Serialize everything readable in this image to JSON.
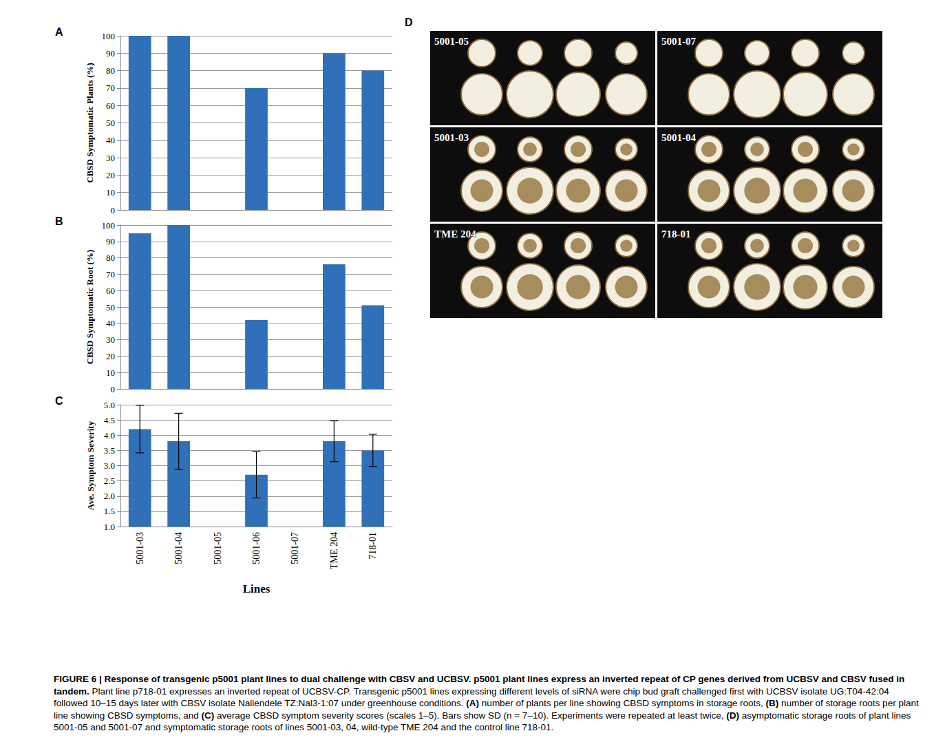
{
  "chart_data": [
    {
      "type": "bar",
      "panel": "A",
      "categories": [
        "5001-03",
        "5001-04",
        "5001-05",
        "5001-06",
        "5001-07",
        "TME 204",
        "718-01"
      ],
      "values": [
        100,
        100,
        0,
        70,
        0,
        90,
        80
      ],
      "color": "#3070b8",
      "y_label": "CBSD Symptomatic Plants (%)",
      "ylim": [
        0,
        100
      ],
      "yticks": [
        0,
        10,
        20,
        30,
        40,
        50,
        60,
        70,
        80,
        90,
        100
      ],
      "grid": true,
      "tick_labels": "y"
    },
    {
      "type": "bar",
      "panel": "B",
      "categories": [
        "5001-03",
        "5001-04",
        "5001-05",
        "5001-06",
        "5001-07",
        "TME 204",
        "718-01"
      ],
      "values": [
        95,
        100,
        0,
        42,
        0,
        76,
        51
      ],
      "color": "#3070b8",
      "y_label": "CBSD Symptomatic Root (%)",
      "ylim": [
        0,
        100
      ],
      "yticks": [
        0,
        10,
        20,
        30,
        40,
        50,
        60,
        70,
        80,
        90,
        100
      ],
      "grid": true,
      "tick_labels": "y"
    },
    {
      "type": "bar",
      "panel": "C",
      "categories": [
        "5001-03",
        "5001-04",
        "5001-05",
        "5001-06",
        "5001-07",
        "TME 204",
        "718-01"
      ],
      "values": [
        4.2,
        3.8,
        null,
        2.7,
        null,
        3.8,
        3.5
      ],
      "errors": [
        0.78,
        0.92,
        null,
        0.76,
        null,
        0.67,
        0.53
      ],
      "color": "#3070b8",
      "y_label": "Ave. Symptom Severity",
      "x_label": "Lines",
      "ylim": [
        1,
        5
      ],
      "yticks": [
        {
          "value": 1,
          "label": "1.0"
        },
        {
          "value": 1.5,
          "label": "1.5"
        },
        {
          "value": 2,
          "label": "2.0"
        },
        {
          "value": 2.5,
          "label": "2.5"
        },
        {
          "value": 3,
          "label": "3.0"
        },
        {
          "value": 3.5,
          "label": "3.5"
        },
        {
          "value": 4,
          "label": "4.0"
        },
        {
          "value": 4.5,
          "label": "4.5"
        },
        {
          "value": 5,
          "label": "5.0"
        }
      ],
      "grid": true
    }
  ],
  "panel_d": {
    "letter": "D",
    "photos": [
      "5001-05",
      "5001-07",
      "5001-03",
      "5001-04",
      "TME 204",
      "718-01"
    ]
  },
  "caption": {
    "title": "FIGURE 6 | Response of transgenic p5001 plant lines to dual challenge with CBSV and UCBSV. p5001 plant lines express an inverted repeat of CP genes derived from UCBSV and CBSV fused in tandem.",
    "text": "Plant line p718-01 expresses an inverted repeat of UCBSV-CP. Transgenic p5001 lines expressing different levels of siRNA were chip bud graft challenged first with UCBSV isolate UG:T04-42:04 followed 10–15 days later with CBSV isolate Naliendele TZ:Nal3-1:07 under greenhouse conditions. (A) number of plants per line showing CBSD symptoms in storage roots, (B) number of storage roots per plant line showing CBSD symptoms, and (C) average CBSD symptom severity scores (scales 1–5). Bars show SD (n = 7–10). Experiments were repeated at least twice, (D) asymptomatic storage roots of plant lines 5001-05 and 5001-07 and symptomatic storage roots of lines 5001-03, 04, wild-type TME 204 and the control line 718-01."
  }
}
